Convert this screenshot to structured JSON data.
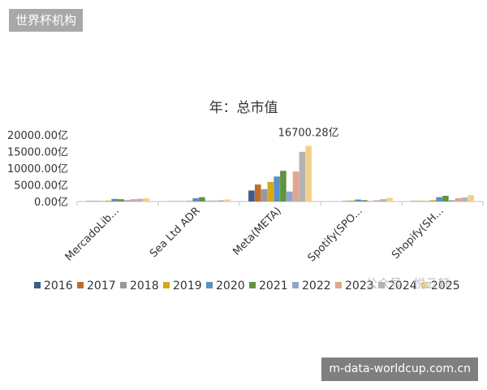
{
  "page": {
    "tag_label": "世界杯机构",
    "url_label": "m-data-worldcup.com.cn",
    "watermark": "公众号 · 悦云轩"
  },
  "chart_data": {
    "type": "bar",
    "title": "年：总市值",
    "xlabel": "",
    "ylabel": "",
    "ylim": [
      0,
      20000
    ],
    "yticks": [
      0,
      5000,
      10000,
      15000,
      20000
    ],
    "ytick_labels": [
      "0.00亿",
      "5000.00亿",
      "10000.00亿",
      "15000.00亿",
      "20000.00亿"
    ],
    "grid": false,
    "legend_position": "bottom",
    "categories": [
      "MercadoLib...",
      "Sea Ltd ADR",
      "Meta(META)",
      "Spotify(SPO...",
      "Shopify(SH..."
    ],
    "series": [
      {
        "name": "2016",
        "color": "#3e5b8c",
        "values": [
          100,
          50,
          3300,
          0,
          100
        ]
      },
      {
        "name": "2017",
        "color": "#c46d2a",
        "values": [
          150,
          80,
          5100,
          0,
          150
        ]
      },
      {
        "name": "2018",
        "color": "#999999",
        "values": [
          150,
          100,
          3700,
          200,
          150
        ]
      },
      {
        "name": "2019",
        "color": "#d6a81b",
        "values": [
          250,
          200,
          5900,
          300,
          400
        ]
      },
      {
        "name": "2020",
        "color": "#5d8fc4",
        "values": [
          800,
          1000,
          7500,
          600,
          1300
        ]
      },
      {
        "name": "2021",
        "color": "#5f9440",
        "values": [
          700,
          1300,
          9200,
          400,
          1700
        ]
      },
      {
        "name": "2022",
        "color": "#8ea6cc",
        "values": [
          400,
          250,
          3000,
          150,
          400
        ]
      },
      {
        "name": "2023",
        "color": "#e3a590",
        "values": [
          700,
          300,
          9000,
          400,
          1000
        ]
      },
      {
        "name": "2024",
        "color": "#b3b3b3",
        "values": [
          800,
          400,
          14900,
          700,
          1200
        ]
      },
      {
        "name": "2025",
        "color": "#f3d08a",
        "values": [
          950,
          600,
          16700.28,
          1100,
          1900
        ]
      }
    ],
    "annotations": [
      {
        "text": "16700.28亿",
        "category": "Meta(META)",
        "series": "2025",
        "value": 16700.28
      }
    ]
  }
}
